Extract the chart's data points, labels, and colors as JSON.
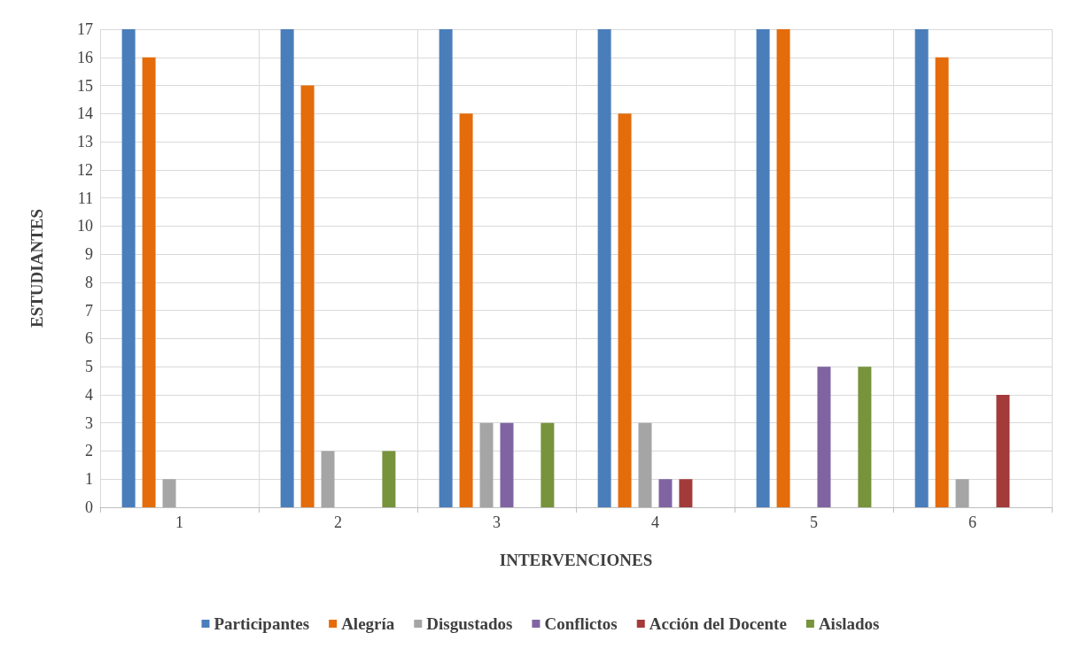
{
  "chart_data": {
    "type": "bar",
    "xlabel": "INTERVENCIONES",
    "ylabel": "ESTUDIANTES",
    "categories": [
      "1",
      "2",
      "3",
      "4",
      "5",
      "6"
    ],
    "series": [
      {
        "name": "Participantes",
        "color": "#4a7ebb",
        "values": [
          17,
          17,
          17,
          17,
          17,
          17
        ]
      },
      {
        "name": "Alegría",
        "color": "#e46c0a",
        "values": [
          16,
          15,
          14,
          14,
          17,
          16
        ]
      },
      {
        "name": "Disgustados",
        "color": "#a5a5a5",
        "values": [
          1,
          2,
          3,
          3,
          0,
          1
        ]
      },
      {
        "name": "Conflictos",
        "color": "#8064a2",
        "values": [
          0,
          0,
          3,
          1,
          5,
          0
        ]
      },
      {
        "name": "Acción del Docente",
        "color": "#a33b3b",
        "values": [
          0,
          0,
          0,
          1,
          0,
          4
        ]
      },
      {
        "name": "Aislados",
        "color": "#77933c",
        "values": [
          0,
          2,
          3,
          0,
          5,
          0
        ]
      }
    ],
    "ylim": [
      0,
      17
    ],
    "yticks": [
      0,
      1,
      2,
      3,
      4,
      5,
      6,
      7,
      8,
      9,
      10,
      11,
      12,
      13,
      14,
      15,
      16,
      17
    ],
    "grid": true,
    "legend": "bottom"
  }
}
